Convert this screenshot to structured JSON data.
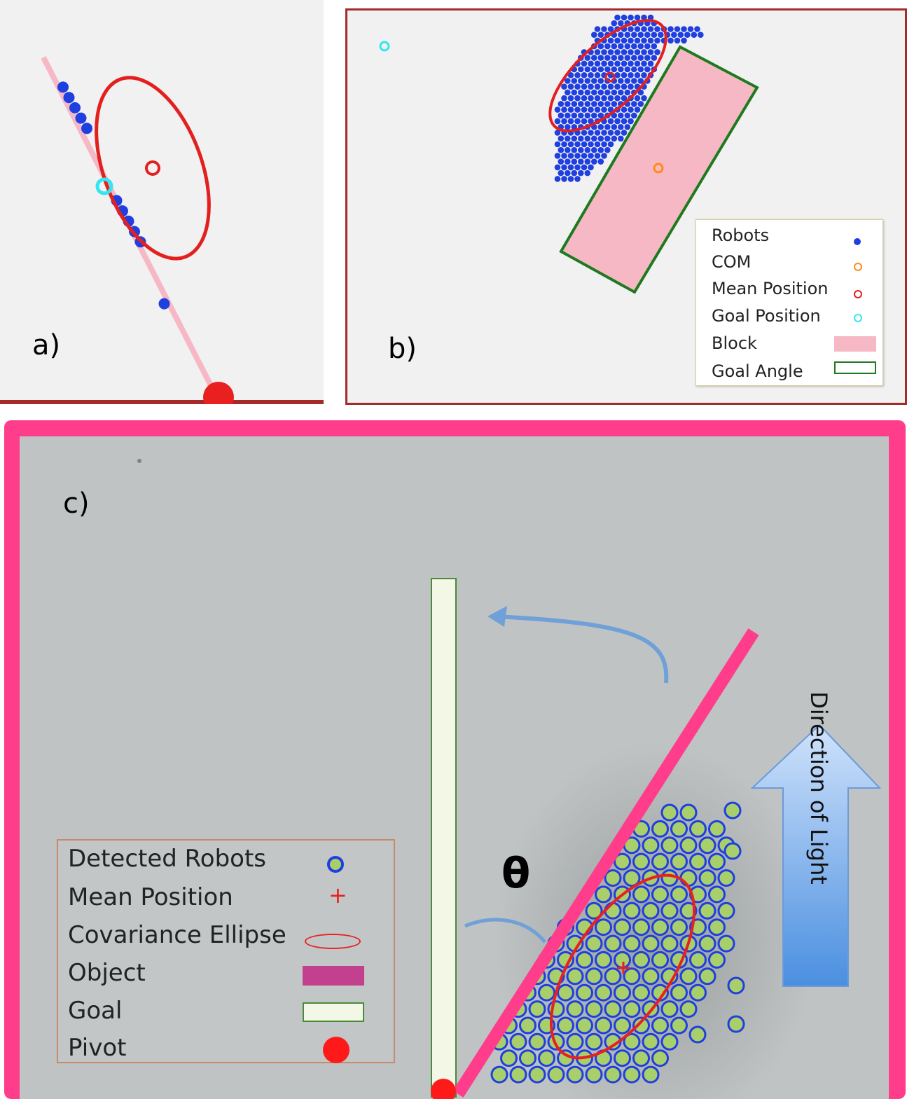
{
  "panels": {
    "a": {
      "label": "a)"
    },
    "b": {
      "label": "b)"
    },
    "c": {
      "label": "c)",
      "theta_label": "θ",
      "arrow_label": "Direction of Light"
    }
  },
  "legend_b": [
    {
      "label": "Robots"
    },
    {
      "label": "COM"
    },
    {
      "label": "Mean Position"
    },
    {
      "label": "Goal Position"
    },
    {
      "label": "Block"
    },
    {
      "label": "Goal Angle"
    }
  ],
  "legend_c": [
    {
      "label": "Detected Robots"
    },
    {
      "label": "Mean Position"
    },
    {
      "label": "Covariance Ellipse"
    },
    {
      "label": "Object"
    },
    {
      "label": "Goal"
    },
    {
      "label": "Pivot"
    }
  ],
  "colors": {
    "robot": "#1f3fe0",
    "com": "#ff8c1a",
    "mean": "#e32020",
    "goal_position": "#33e6f0",
    "block": "#f7b8c6",
    "goal_angle": "#1e7a1e",
    "object": "#ff3d8b",
    "goal_bar": "#f2f7e6",
    "pivot": "#ff1a1a",
    "light_arrow": "#7fb3f0"
  }
}
